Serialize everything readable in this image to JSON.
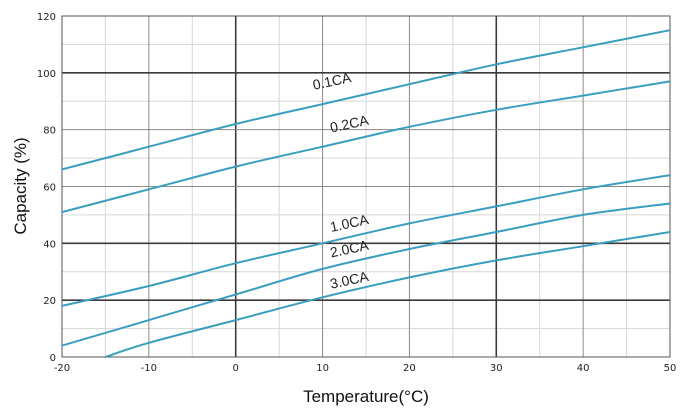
{
  "chart_data": {
    "type": "line",
    "xlabel": "Temperature(°C)",
    "ylabel": "Capacity (%)",
    "xlim": [
      -20,
      50
    ],
    "ylim": [
      0,
      120
    ],
    "xticks": [
      -20,
      -10,
      0,
      10,
      20,
      30,
      40,
      50
    ],
    "yticks": [
      0,
      20,
      40,
      60,
      80,
      100,
      120
    ],
    "tick_labels_x": [
      "-20",
      "-10",
      "0",
      "10",
      "20",
      "30",
      "40",
      "50"
    ],
    "tick_labels_y": [
      "0",
      "20",
      "40",
      "60",
      "80",
      "100",
      "120"
    ],
    "major_grid_x": [
      0,
      30
    ],
    "major_grid_y": [
      20,
      40,
      100
    ],
    "grid": true,
    "line_color": "#3a9ec0",
    "series": [
      {
        "name": "0.1CA",
        "x": [
          -20,
          -10,
          0,
          10,
          20,
          30,
          40,
          50
        ],
        "y": [
          66,
          74,
          82,
          89,
          96,
          103,
          109,
          115
        ],
        "label_at": [
          9,
          94,
          -12
        ]
      },
      {
        "name": "0.2CA",
        "x": [
          -20,
          -10,
          0,
          10,
          20,
          30,
          40,
          50
        ],
        "y": [
          51,
          59,
          67,
          74,
          81,
          87,
          92,
          97
        ],
        "label_at": [
          11,
          79,
          -12
        ]
      },
      {
        "name": "1.0CA",
        "x": [
          -20,
          -10,
          0,
          10,
          20,
          30,
          40,
          50
        ],
        "y": [
          18,
          25,
          33,
          40,
          47,
          53,
          59,
          64
        ],
        "label_at": [
          11,
          44,
          -12
        ]
      },
      {
        "name": "2.0CA",
        "x": [
          -20,
          -10,
          0,
          10,
          20,
          30,
          40,
          50
        ],
        "y": [
          4,
          13,
          22,
          31,
          38,
          44,
          50,
          54
        ],
        "label_at": [
          11,
          35,
          -12
        ]
      },
      {
        "name": "3.0CA",
        "x": [
          -15,
          -10,
          0,
          10,
          20,
          30,
          40,
          50
        ],
        "y": [
          0,
          5,
          13,
          21,
          28,
          34,
          39,
          44
        ],
        "label_at": [
          11,
          24,
          -12
        ]
      }
    ]
  }
}
